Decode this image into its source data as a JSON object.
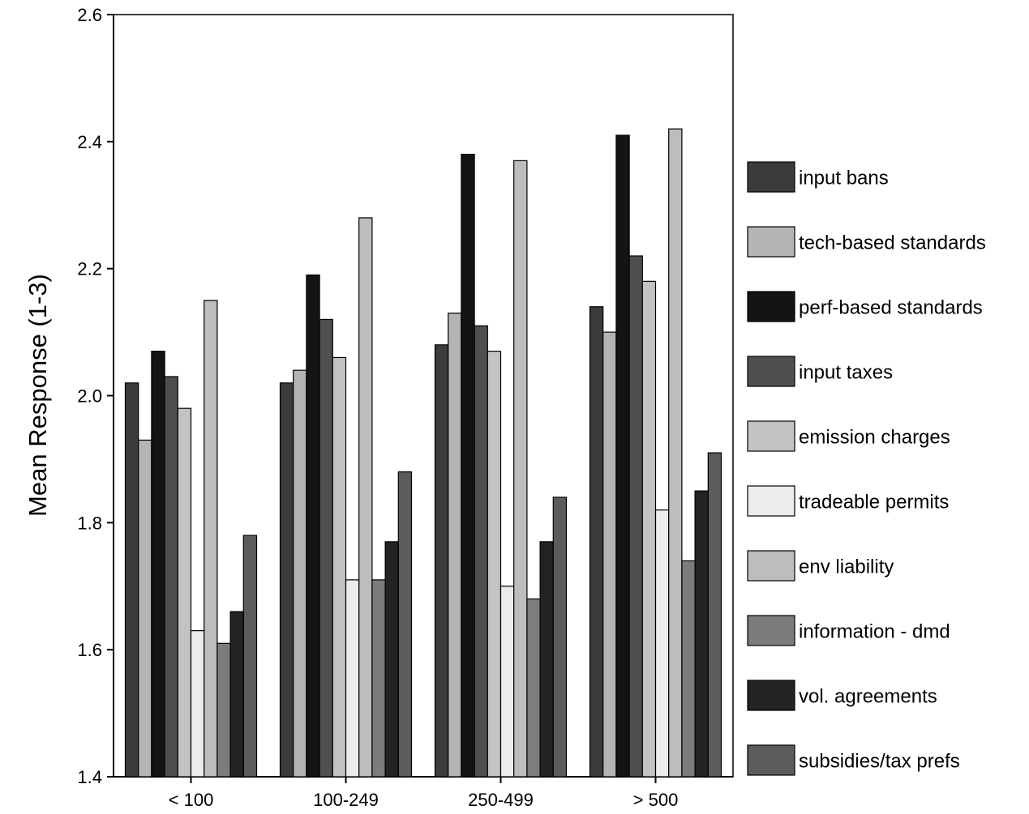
{
  "chart_data": {
    "type": "bar",
    "ylabel": "Mean Response (1-3)",
    "xlabel": "",
    "ylim": [
      1.4,
      2.6
    ],
    "yticks": [
      "1.4",
      "1.6",
      "1.8",
      "2.0",
      "2.2",
      "2.4",
      "2.6"
    ],
    "categories": [
      "< 100",
      "100-249",
      "250-499",
      "> 500"
    ],
    "grid": false,
    "legend_position": "right",
    "series": [
      {
        "name": "input bans",
        "color": "#3b3b3b",
        "values": [
          2.02,
          2.02,
          2.08,
          2.14
        ]
      },
      {
        "name": "tech-based standards",
        "color": "#b4b4b4",
        "values": [
          1.93,
          2.04,
          2.13,
          2.1
        ]
      },
      {
        "name": "perf-based standards",
        "color": "#141414",
        "values": [
          2.07,
          2.19,
          2.38,
          2.41
        ]
      },
      {
        "name": "input taxes",
        "color": "#4f4f4f",
        "values": [
          2.03,
          2.12,
          2.11,
          2.22
        ]
      },
      {
        "name": "emission charges",
        "color": "#c3c3c3",
        "values": [
          1.98,
          2.06,
          2.07,
          2.18
        ]
      },
      {
        "name": "tradeable permits",
        "color": "#ececec",
        "values": [
          1.63,
          1.71,
          1.7,
          1.82
        ]
      },
      {
        "name": "env liability",
        "color": "#bdbdbd",
        "values": [
          2.15,
          2.28,
          2.37,
          2.42
        ]
      },
      {
        "name": "information - dmd",
        "color": "#7c7c7c",
        "values": [
          1.61,
          1.71,
          1.68,
          1.74
        ]
      },
      {
        "name": "vol. agreements",
        "color": "#232323",
        "values": [
          1.66,
          1.77,
          1.77,
          1.85
        ]
      },
      {
        "name": "subsidies/tax prefs",
        "color": "#5c5c5c",
        "values": [
          1.78,
          1.88,
          1.84,
          1.91
        ]
      }
    ]
  }
}
